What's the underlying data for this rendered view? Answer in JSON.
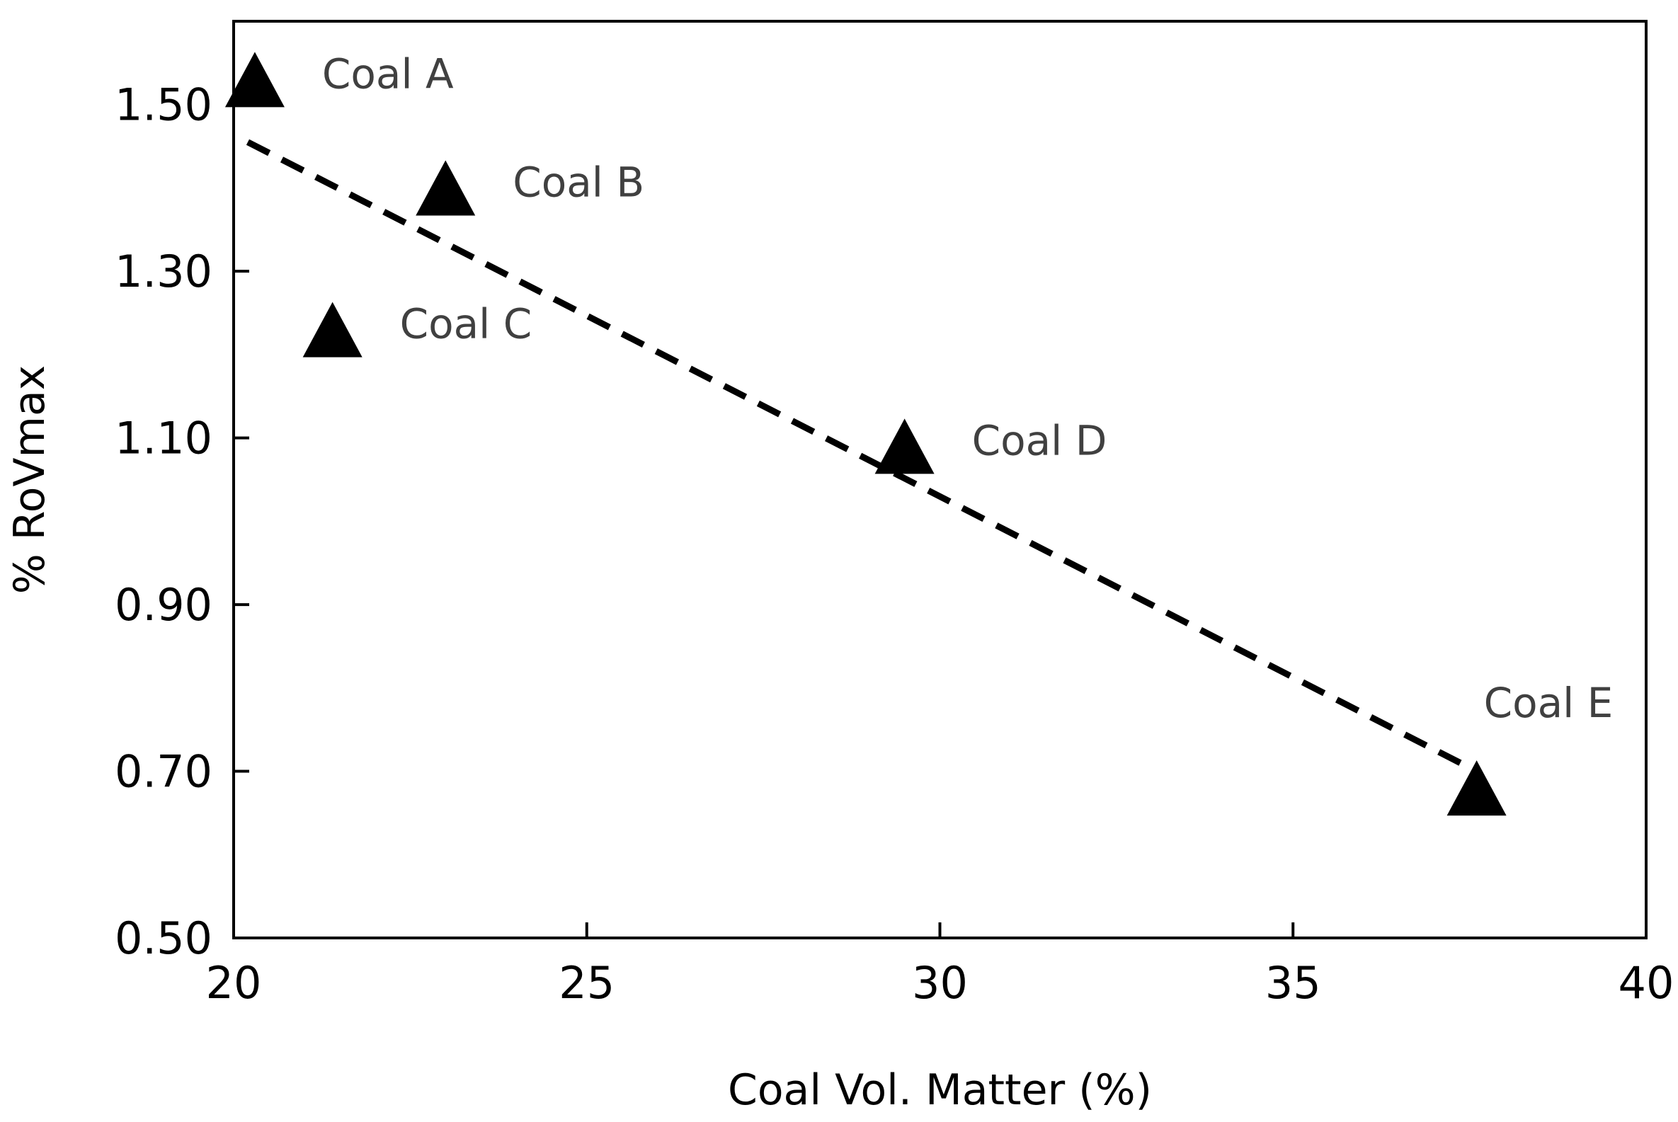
{
  "chart_data": {
    "type": "scatter",
    "title": "",
    "xlabel": "Coal Vol. Matter (%)",
    "ylabel": "% RoVmax",
    "xlim": [
      20,
      40
    ],
    "ylim": [
      0.5,
      1.6
    ],
    "xticks": [
      20,
      25,
      30,
      35,
      40
    ],
    "xtick_labels": [
      "20",
      "25",
      "30",
      "35",
      "40"
    ],
    "yticks": [
      0.5,
      0.7,
      0.9,
      1.1,
      1.3,
      1.5
    ],
    "ytick_labels": [
      "0.50",
      "0.70",
      "0.90",
      "1.10",
      "1.30",
      "1.50"
    ],
    "grid": false,
    "marker": "triangle",
    "marker_color": "#000000",
    "label_color": "#404040",
    "points": [
      {
        "label": "Coal A",
        "x": 20.3,
        "y": 1.53
      },
      {
        "label": "Coal B",
        "x": 23.0,
        "y": 1.4
      },
      {
        "label": "Coal C",
        "x": 21.4,
        "y": 1.23
      },
      {
        "label": "Coal D",
        "x": 29.5,
        "y": 1.09
      },
      {
        "label": "Coal E",
        "x": 37.6,
        "y": 0.68
      }
    ],
    "trendline": {
      "style": "dashed",
      "x": [
        20.2,
        37.6
      ],
      "y": [
        1.455,
        0.7
      ]
    }
  }
}
